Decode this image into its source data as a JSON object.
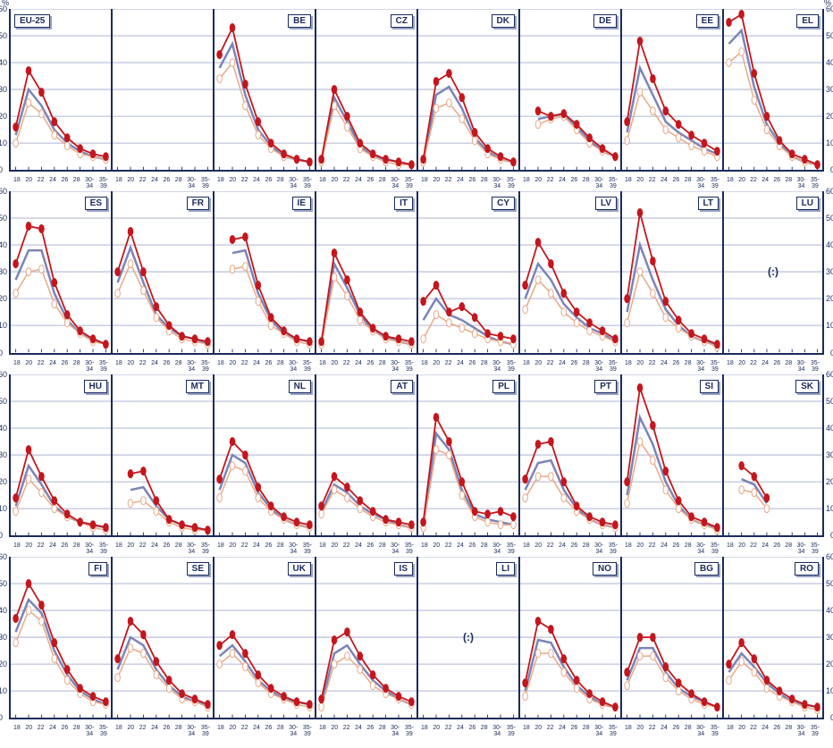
{
  "chart": {
    "type": "small-multiples-line",
    "rows": 4,
    "cols": 8,
    "ylim": [
      0,
      60
    ],
    "ytick_step": 10,
    "yticks": [
      0,
      10,
      20,
      30,
      40,
      50,
      60
    ],
    "xlabels": [
      "18",
      "20",
      "22",
      "24",
      "26",
      "28",
      "30-\n34",
      "35-\n39"
    ],
    "pct_symbol": "%",
    "colors": {
      "grid": "#c4c9de",
      "axis": "#1a2b5c",
      "series_red": "#c4161c",
      "series_blue": "#7a85b8",
      "series_orange": "#e8a988",
      "marker_fill_open": "#ffffff",
      "background": "#ffffff",
      "label_shadow": "#9aa3c4"
    },
    "line_width_red": 1.8,
    "line_width_blue": 2.5,
    "line_width_orange": 1.5,
    "marker_radius": 2.5,
    "fontsize_label": 10,
    "fontsize_tick": 7,
    "fontsize_ytick": 9
  },
  "panels": [
    {
      "code": "EU-25",
      "label_side": "left",
      "red": [
        16,
        37,
        29,
        18,
        12,
        8,
        6,
        5
      ],
      "blue": [
        13,
        30,
        24,
        15,
        10,
        7,
        5,
        4
      ],
      "orange": [
        10,
        25,
        21,
        13,
        9,
        6,
        5,
        4
      ]
    },
    {
      "code": "",
      "label_side": "none",
      "empty": true
    },
    {
      "code": "BE",
      "label_side": "right",
      "red": [
        43,
        53,
        32,
        18,
        10,
        6,
        4,
        3
      ],
      "blue": [
        38,
        47,
        28,
        15,
        9,
        5,
        4,
        3
      ],
      "orange": [
        34,
        40,
        24,
        13,
        8,
        5,
        4,
        3
      ]
    },
    {
      "code": "CZ",
      "label_side": "right",
      "red": [
        4,
        30,
        20,
        10,
        6,
        4,
        3,
        2
      ],
      "blue": [
        3,
        27,
        18,
        9,
        5,
        4,
        3,
        2
      ],
      "orange": [
        3,
        24,
        16,
        8,
        5,
        3,
        2,
        2
      ]
    },
    {
      "code": "DK",
      "label_side": "right",
      "red": [
        4,
        33,
        36,
        27,
        14,
        8,
        5,
        3
      ],
      "blue": [
        3,
        28,
        31,
        23,
        12,
        7,
        4,
        3
      ],
      "orange": [
        3,
        23,
        25,
        19,
        11,
        6,
        4,
        3
      ]
    },
    {
      "code": "DE",
      "label_side": "right",
      "red": [
        null,
        22,
        20,
        21,
        17,
        12,
        8,
        5
      ],
      "blue": [
        null,
        19,
        20,
        21,
        16,
        11,
        7,
        5
      ],
      "orange": [
        null,
        17,
        19,
        20,
        15,
        10,
        7,
        5
      ]
    },
    {
      "code": "EE",
      "label_side": "right",
      "red": [
        18,
        48,
        34,
        22,
        17,
        13,
        10,
        7
      ],
      "blue": [
        14,
        38,
        28,
        18,
        14,
        11,
        8,
        6
      ],
      "orange": [
        11,
        29,
        22,
        15,
        12,
        9,
        7,
        5
      ]
    },
    {
      "code": "EL",
      "label_side": "right",
      "red": [
        55,
        58,
        36,
        20,
        11,
        6,
        4,
        2
      ],
      "blue": [
        47,
        52,
        31,
        17,
        10,
        5,
        3,
        2
      ],
      "orange": [
        40,
        44,
        26,
        15,
        9,
        5,
        3,
        2
      ]
    },
    {
      "code": "ES",
      "label_side": "right",
      "red": [
        33,
        47,
        46,
        26,
        14,
        8,
        5,
        3
      ],
      "blue": [
        27,
        38,
        38,
        22,
        12,
        7,
        5,
        3
      ],
      "orange": [
        22,
        30,
        31,
        18,
        11,
        7,
        4,
        3
      ]
    },
    {
      "code": "FR",
      "label_side": "right",
      "red": [
        30,
        45,
        30,
        17,
        10,
        6,
        5,
        4
      ],
      "blue": [
        26,
        39,
        26,
        14,
        9,
        6,
        5,
        3
      ],
      "orange": [
        22,
        33,
        23,
        13,
        8,
        5,
        4,
        3
      ]
    },
    {
      "code": "IE",
      "label_side": "right",
      "red": [
        null,
        42,
        43,
        25,
        13,
        8,
        5,
        4
      ],
      "blue": [
        null,
        37,
        38,
        22,
        12,
        7,
        5,
        4
      ],
      "orange": [
        null,
        31,
        32,
        19,
        10,
        7,
        4,
        3
      ]
    },
    {
      "code": "IT",
      "label_side": "right",
      "red": [
        4,
        37,
        27,
        15,
        9,
        6,
        5,
        4
      ],
      "blue": [
        3,
        33,
        24,
        14,
        8,
        6,
        4,
        3
      ],
      "orange": [
        3,
        28,
        21,
        12,
        8,
        5,
        4,
        3
      ]
    },
    {
      "code": "CY",
      "label_side": "right",
      "red": [
        19,
        25,
        15,
        17,
        13,
        7,
        6,
        5
      ],
      "blue": [
        12,
        20,
        14,
        12,
        9,
        6,
        4,
        3
      ],
      "orange": [
        5,
        14,
        11,
        9,
        7,
        5,
        4,
        3
      ]
    },
    {
      "code": "LV",
      "label_side": "right",
      "red": [
        25,
        41,
        33,
        22,
        15,
        11,
        8,
        5
      ],
      "blue": [
        20,
        33,
        27,
        18,
        13,
        9,
        7,
        4
      ],
      "orange": [
        16,
        27,
        22,
        15,
        11,
        8,
        6,
        4
      ]
    },
    {
      "code": "LT",
      "label_side": "right",
      "red": [
        20,
        52,
        34,
        19,
        12,
        7,
        5,
        3
      ],
      "blue": [
        15,
        40,
        27,
        16,
        10,
        6,
        4,
        3
      ],
      "orange": [
        11,
        30,
        22,
        13,
        9,
        6,
        4,
        2
      ]
    },
    {
      "code": "LU",
      "label_side": "right",
      "nodata": "(:)"
    },
    {
      "code": "HU",
      "label_side": "right",
      "red": [
        14,
        32,
        22,
        13,
        8,
        5,
        4,
        3
      ],
      "blue": [
        11,
        26,
        19,
        11,
        7,
        5,
        4,
        3
      ],
      "orange": [
        9,
        21,
        16,
        10,
        7,
        5,
        3,
        2
      ]
    },
    {
      "code": "MT",
      "label_side": "right",
      "red": [
        null,
        23,
        24,
        13,
        6,
        4,
        3,
        2
      ],
      "blue": [
        null,
        17,
        18,
        11,
        6,
        4,
        3,
        2
      ],
      "orange": [
        null,
        12,
        13,
        9,
        5,
        3,
        2,
        2
      ]
    },
    {
      "code": "NL",
      "label_side": "right",
      "red": [
        21,
        35,
        30,
        18,
        11,
        7,
        5,
        4
      ],
      "blue": [
        17,
        30,
        27,
        16,
        10,
        6,
        4,
        3
      ],
      "orange": [
        14,
        26,
        24,
        14,
        9,
        6,
        4,
        3
      ]
    },
    {
      "code": "AT",
      "label_side": "right",
      "red": [
        11,
        22,
        18,
        13,
        9,
        6,
        5,
        4
      ],
      "blue": [
        9,
        19,
        16,
        11,
        8,
        6,
        4,
        3
      ],
      "orange": [
        8,
        17,
        14,
        10,
        7,
        5,
        4,
        3
      ]
    },
    {
      "code": "PL",
      "label_side": "right",
      "red": [
        5,
        44,
        35,
        20,
        9,
        8,
        9,
        7
      ],
      "blue": [
        4,
        38,
        32,
        17,
        8,
        6,
        5,
        4
      ],
      "orange": [
        3,
        32,
        30,
        15,
        7,
        5,
        4,
        4
      ]
    },
    {
      "code": "PT",
      "label_side": "right",
      "red": [
        21,
        34,
        35,
        20,
        11,
        7,
        5,
        4
      ],
      "blue": [
        17,
        27,
        28,
        17,
        10,
        6,
        4,
        3
      ],
      "orange": [
        14,
        22,
        22,
        14,
        9,
        6,
        4,
        3
      ]
    },
    {
      "code": "SI",
      "label_side": "right",
      "red": [
        20,
        55,
        41,
        24,
        13,
        7,
        5,
        3
      ],
      "blue": [
        15,
        44,
        34,
        20,
        11,
        6,
        4,
        3
      ],
      "orange": [
        12,
        35,
        28,
        17,
        10,
        6,
        4,
        2
      ]
    },
    {
      "code": "SK",
      "label_side": "right",
      "red": [
        null,
        26,
        22,
        14,
        null,
        null,
        null,
        null
      ],
      "blue": [
        null,
        21,
        19,
        12,
        null,
        null,
        null,
        null
      ],
      "orange": [
        null,
        17,
        16,
        10,
        null,
        null,
        null,
        null
      ]
    },
    {
      "code": "FI",
      "label_side": "right",
      "red": [
        37,
        50,
        42,
        28,
        18,
        11,
        8,
        6
      ],
      "blue": [
        32,
        44,
        39,
        25,
        16,
        10,
        7,
        5
      ],
      "orange": [
        28,
        40,
        36,
        22,
        14,
        9,
        6,
        5
      ]
    },
    {
      "code": "SE",
      "label_side": "right",
      "red": [
        22,
        36,
        31,
        21,
        14,
        9,
        7,
        5
      ],
      "blue": [
        18,
        30,
        27,
        18,
        12,
        8,
        6,
        5
      ],
      "orange": [
        15,
        26,
        24,
        16,
        11,
        7,
        6,
        4
      ]
    },
    {
      "code": "UK",
      "label_side": "right",
      "red": [
        27,
        31,
        24,
        16,
        11,
        8,
        6,
        5
      ],
      "blue": [
        23,
        27,
        21,
        14,
        10,
        7,
        6,
        5
      ],
      "orange": [
        20,
        24,
        19,
        13,
        9,
        7,
        5,
        4
      ]
    },
    {
      "code": "IS",
      "label_side": "right",
      "red": [
        7,
        29,
        32,
        23,
        16,
        11,
        8,
        6
      ],
      "blue": [
        5,
        24,
        27,
        20,
        14,
        10,
        7,
        5
      ],
      "orange": [
        4,
        20,
        23,
        18,
        12,
        9,
        7,
        5
      ]
    },
    {
      "code": "LI",
      "label_side": "right",
      "nodata": "(:)"
    },
    {
      "code": "NO",
      "label_side": "right",
      "red": [
        13,
        36,
        33,
        22,
        14,
        9,
        6,
        4
      ],
      "blue": [
        10,
        29,
        28,
        19,
        12,
        8,
        5,
        4
      ],
      "orange": [
        8,
        24,
        24,
        17,
        11,
        7,
        5,
        4
      ]
    },
    {
      "code": "BG",
      "label_side": "right",
      "red": [
        17,
        30,
        30,
        19,
        13,
        9,
        6,
        4
      ],
      "blue": [
        14,
        26,
        26,
        17,
        11,
        8,
        6,
        4
      ],
      "orange": [
        12,
        23,
        23,
        15,
        10,
        7,
        5,
        4
      ]
    },
    {
      "code": "RO",
      "label_side": "right",
      "red": [
        20,
        28,
        22,
        14,
        10,
        7,
        5,
        4
      ],
      "blue": [
        17,
        24,
        19,
        13,
        9,
        6,
        5,
        4
      ],
      "orange": [
        14,
        21,
        17,
        11,
        8,
        6,
        4,
        3
      ]
    }
  ]
}
